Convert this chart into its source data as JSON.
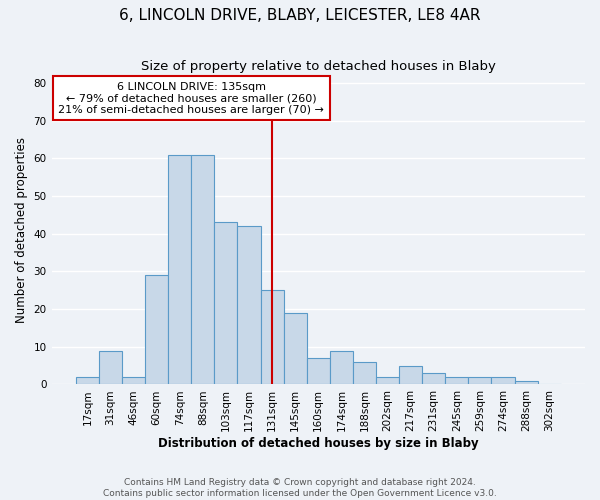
{
  "title": "6, LINCOLN DRIVE, BLABY, LEICESTER, LE8 4AR",
  "subtitle": "Size of property relative to detached houses in Blaby",
  "xlabel": "Distribution of detached houses by size in Blaby",
  "ylabel": "Number of detached properties",
  "footer_lines": [
    "Contains HM Land Registry data © Crown copyright and database right 2024.",
    "Contains public sector information licensed under the Open Government Licence v3.0."
  ],
  "bar_labels": [
    "17sqm",
    "31sqm",
    "46sqm",
    "60sqm",
    "74sqm",
    "88sqm",
    "103sqm",
    "117sqm",
    "131sqm",
    "145sqm",
    "160sqm",
    "174sqm",
    "188sqm",
    "202sqm",
    "217sqm",
    "231sqm",
    "245sqm",
    "259sqm",
    "274sqm",
    "288sqm",
    "302sqm"
  ],
  "bar_values": [
    2,
    9,
    2,
    29,
    61,
    61,
    43,
    42,
    25,
    19,
    7,
    9,
    6,
    2,
    5,
    3,
    2,
    2,
    2,
    1,
    0
  ],
  "bar_color": "#c8d8e8",
  "bar_edge_color": "#5a9ac8",
  "annotation_line_idx": 8,
  "annotation_line_color": "#cc0000",
  "annotation_box_text": "6 LINCOLN DRIVE: 135sqm\n← 79% of detached houses are smaller (260)\n21% of semi-detached houses are larger (70) →",
  "annotation_box_edge_color": "#cc0000",
  "annotation_box_face_color": "#ffffff",
  "ylim": [
    0,
    82
  ],
  "yticks": [
    0,
    10,
    20,
    30,
    40,
    50,
    60,
    70,
    80
  ],
  "bg_color": "#eef2f7",
  "grid_color": "#ffffff",
  "title_fontsize": 11,
  "subtitle_fontsize": 9.5,
  "axis_label_fontsize": 8.5,
  "tick_fontsize": 7.5,
  "annotation_fontsize": 8,
  "footer_fontsize": 6.5
}
